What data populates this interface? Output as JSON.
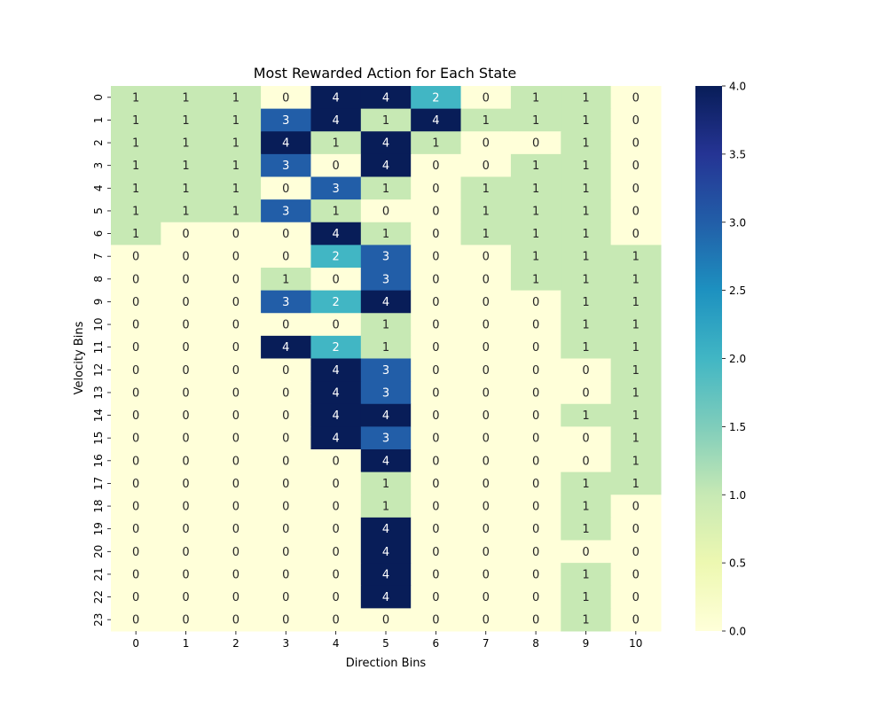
{
  "chart_data": {
    "type": "heatmap",
    "title": "Most Rewarded Action for Each State",
    "xlabel": "Direction Bins",
    "ylabel": "Velocity Bins",
    "x_ticks": [
      "0",
      "1",
      "2",
      "3",
      "4",
      "5",
      "6",
      "7",
      "8",
      "9",
      "10"
    ],
    "y_ticks": [
      "0",
      "1",
      "2",
      "3",
      "4",
      "5",
      "6",
      "7",
      "8",
      "9",
      "10",
      "11",
      "12",
      "13",
      "14",
      "15",
      "16",
      "17",
      "18",
      "19",
      "20",
      "21",
      "22",
      "23"
    ],
    "values": [
      [
        1,
        1,
        1,
        0,
        4,
        4,
        2,
        0,
        1,
        1,
        0
      ],
      [
        1,
        1,
        1,
        3,
        4,
        1,
        4,
        1,
        1,
        1,
        0
      ],
      [
        1,
        1,
        1,
        4,
        1,
        4,
        1,
        0,
        0,
        1,
        0
      ],
      [
        1,
        1,
        1,
        3,
        0,
        4,
        0,
        0,
        1,
        1,
        0
      ],
      [
        1,
        1,
        1,
        0,
        3,
        1,
        0,
        1,
        1,
        1,
        0
      ],
      [
        1,
        1,
        1,
        3,
        1,
        0,
        0,
        1,
        1,
        1,
        0
      ],
      [
        1,
        0,
        0,
        0,
        4,
        1,
        0,
        1,
        1,
        1,
        0
      ],
      [
        0,
        0,
        0,
        0,
        2,
        3,
        0,
        0,
        1,
        1,
        1
      ],
      [
        0,
        0,
        0,
        1,
        0,
        3,
        0,
        0,
        1,
        1,
        1
      ],
      [
        0,
        0,
        0,
        3,
        2,
        4,
        0,
        0,
        0,
        1,
        1
      ],
      [
        0,
        0,
        0,
        0,
        0,
        1,
        0,
        0,
        0,
        1,
        1
      ],
      [
        0,
        0,
        0,
        4,
        2,
        1,
        0,
        0,
        0,
        1,
        1
      ],
      [
        0,
        0,
        0,
        0,
        4,
        3,
        0,
        0,
        0,
        0,
        1
      ],
      [
        0,
        0,
        0,
        0,
        4,
        3,
        0,
        0,
        0,
        0,
        1
      ],
      [
        0,
        0,
        0,
        0,
        4,
        4,
        0,
        0,
        0,
        1,
        1
      ],
      [
        0,
        0,
        0,
        0,
        4,
        3,
        0,
        0,
        0,
        0,
        1
      ],
      [
        0,
        0,
        0,
        0,
        0,
        4,
        0,
        0,
        0,
        0,
        1
      ],
      [
        0,
        0,
        0,
        0,
        0,
        1,
        0,
        0,
        0,
        1,
        1
      ],
      [
        0,
        0,
        0,
        0,
        0,
        1,
        0,
        0,
        0,
        1,
        0
      ],
      [
        0,
        0,
        0,
        0,
        0,
        4,
        0,
        0,
        0,
        1,
        0
      ],
      [
        0,
        0,
        0,
        0,
        0,
        4,
        0,
        0,
        0,
        0,
        0
      ],
      [
        0,
        0,
        0,
        0,
        0,
        4,
        0,
        0,
        0,
        1,
        0
      ],
      [
        0,
        0,
        0,
        0,
        0,
        4,
        0,
        0,
        0,
        1,
        0
      ],
      [
        0,
        0,
        0,
        0,
        0,
        0,
        0,
        0,
        0,
        1,
        0
      ]
    ],
    "vmin": 0,
    "vmax": 4,
    "colormap": "YlGnBu",
    "colorbar_ticks": [
      "0.0",
      "0.5",
      "1.0",
      "1.5",
      "2.0",
      "2.5",
      "3.0",
      "3.5",
      "4.0"
    ],
    "cell_colors": {
      "0": "#ffffd9",
      "1": "#c7e9b4",
      "2": "#41b6c4",
      "3": "#225ea8",
      "4": "#081d58"
    },
    "colorbar_gradient": [
      "#ffffd9",
      "#edf8b1",
      "#c7e9b4",
      "#7fcdbb",
      "#41b6c4",
      "#1d91c0",
      "#225ea8",
      "#253494",
      "#081d58"
    ],
    "annotation_dark_color": "#262626",
    "annotation_light_color": "#ffffff"
  }
}
